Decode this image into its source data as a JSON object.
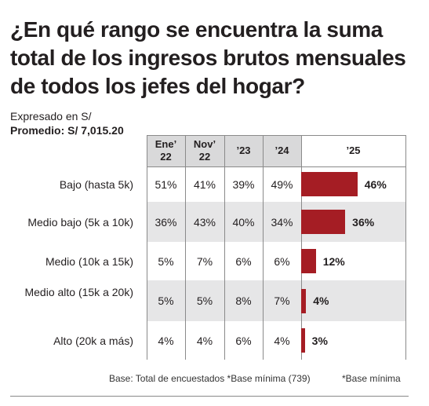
{
  "header": {
    "title": "¿En qué rango se encuentra la suma total de los ingresos brutos mensuales de todos los jefes del hogar?",
    "subtitle_line1": "Expresado en S/",
    "subtitle_line2": "Promedio: S/ 7,015.20"
  },
  "footer": {
    "note": "Base: Total de encuestados *Base mínima (739)",
    "note_extra": "*Base mínima"
  },
  "colors": {
    "bar": "#a51d24",
    "header_bg": "#d9d9da",
    "band_bg": "#e6e6e7"
  },
  "chart_data": {
    "type": "table",
    "columns": [
      {
        "label": "Ene’\n22"
      },
      {
        "label": "Nov’\n22"
      },
      {
        "label": "’23"
      },
      {
        "label": "’24"
      },
      {
        "label": "’25"
      }
    ],
    "rows": [
      {
        "label": "Bajo (hasta 5k)",
        "values": [
          "51%",
          "41%",
          "39%",
          "49%"
        ],
        "bar_value": 46,
        "bar_label": "46%"
      },
      {
        "label": "Medio bajo (5k a 10k)",
        "values": [
          "36%",
          "43%",
          "40%",
          "34%"
        ],
        "bar_value": 36,
        "bar_label": "36%"
      },
      {
        "label": "Medio (10k a 15k)",
        "values": [
          "5%",
          "7%",
          "6%",
          "6%"
        ],
        "bar_value": 12,
        "bar_label": "12%"
      },
      {
        "label": "Medio alto (15k a 20k)",
        "values": [
          "5%",
          "5%",
          "8%",
          "7%"
        ],
        "bar_value": 4,
        "bar_label": "4%"
      },
      {
        "label": "Alto (20k a más)",
        "values": [
          "4%",
          "4%",
          "6%",
          "4%"
        ],
        "bar_value": 3,
        "bar_label": "3%"
      }
    ]
  }
}
